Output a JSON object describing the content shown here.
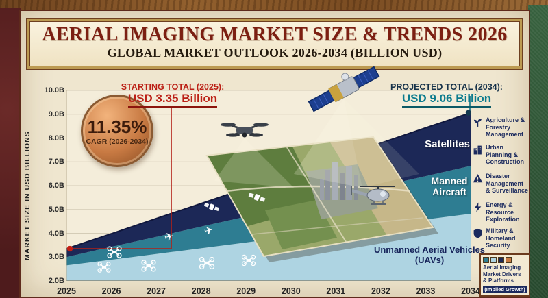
{
  "header": {
    "title": "AERIAL IMAGING MARKET SIZE & TRENDS 2026",
    "subtitle": "GLOBAL MARKET OUTLOOK 2026-2034 (BILLION USD)"
  },
  "badge": {
    "cagr_value": "11.35%",
    "cagr_label": "CAGR (2026-2034)"
  },
  "annotations": {
    "start_label": "STARTING TOTAL (2025):",
    "start_value": "USD 3.35 Billion",
    "end_label": "PROJECTED TOTAL (2034):",
    "end_value": "USD 9.06 Billion"
  },
  "axis": {
    "y_label": "MARKET SIZE IN USD BILLIONS",
    "y_ticks": [
      "10.0B",
      "9.0B",
      "8.0B",
      "7.0B",
      "6.0B",
      "5.0B",
      "4.0B",
      "3.0B",
      "2.0B"
    ],
    "x_ticks": [
      "2025",
      "2026",
      "2027",
      "2028",
      "2029",
      "2030",
      "2031",
      "2032",
      "2033",
      "2034"
    ]
  },
  "bands": {
    "satellites": "Satellites",
    "manned": "Manned Aircraft",
    "uav": "Unmanned Aerial Vehicles (UAVs)"
  },
  "drivers": [
    {
      "label": "Agriculture & Forestry Management",
      "icon": "leaf-icon"
    },
    {
      "label": "Urban Planning & Construction",
      "icon": "building-icon"
    },
    {
      "label": "Disaster Management & Surveillance",
      "icon": "alert-triangle-icon"
    },
    {
      "label": "Energy & Resource Exploration",
      "icon": "bolt-icon"
    },
    {
      "label": "Military & Homeland Security",
      "icon": "shield-icon"
    }
  ],
  "legend": {
    "lines": [
      "Aerial Imaging",
      "Market Drivers",
      "& Platforms"
    ],
    "tag": "(Implied Growth)",
    "swatches": [
      "#2e7d92",
      "#aed4e2",
      "#1c2857",
      "#c87a43"
    ]
  },
  "icons": {
    "plane": "✈"
  },
  "colors": {
    "accent_red": "#c41f14",
    "accent_teal": "#0d7285",
    "navy": "#1c2857",
    "teal": "#2e7d92",
    "light_blue": "#aed4e2",
    "copper": "#c87a43",
    "cream": "#efe6cf"
  },
  "chart_data": {
    "type": "area",
    "stacked": true,
    "title": "AERIAL IMAGING MARKET SIZE & TRENDS 2026",
    "subtitle": "GLOBAL MARKET OUTLOOK 2026-2034 (BILLION USD)",
    "x": [
      2025,
      2026,
      2027,
      2028,
      2029,
      2030,
      2031,
      2032,
      2033,
      2034
    ],
    "series": [
      {
        "name": "Unmanned Aerial Vehicles (UAVs)",
        "color": "#aed4e2",
        "values": [
          2.65,
          2.89,
          3.13,
          3.37,
          3.61,
          3.86,
          4.1,
          4.34,
          4.58,
          4.82
        ]
      },
      {
        "name": "Manned Aircraft",
        "color": "#2e7d92",
        "values": [
          0.35,
          0.54,
          0.72,
          0.91,
          1.09,
          1.27,
          1.45,
          1.64,
          1.82,
          2.01
        ]
      },
      {
        "name": "Satellites",
        "color": "#1c2857",
        "values": [
          0.35,
          0.55,
          0.77,
          0.97,
          1.19,
          1.39,
          1.61,
          1.81,
          2.03,
          2.23
        ]
      }
    ],
    "totals": [
      3.35,
      3.98,
      4.62,
      5.25,
      5.89,
      6.52,
      7.16,
      7.79,
      8.43,
      9.06
    ],
    "start_total_2025": 3.35,
    "projected_total_2034": 9.06,
    "cagr_2026_2034_pct": 11.35,
    "ylim": [
      2,
      10
    ],
    "xlabel": "",
    "ylabel": "MARKET SIZE IN USD BILLIONS",
    "grid": true,
    "legend_position": "labels-inside-bands"
  }
}
